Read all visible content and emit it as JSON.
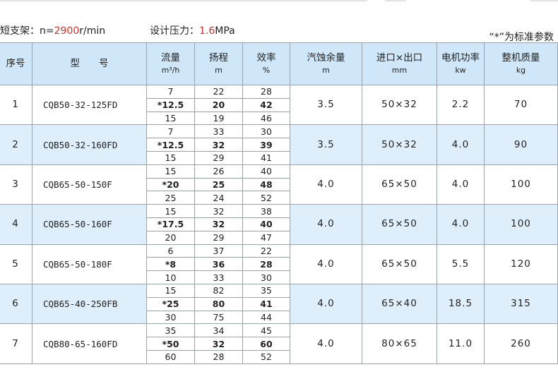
{
  "header_info": {
    "bracket_label": "短支架：n=",
    "speed_value": "2900",
    "speed_unit": "r/min",
    "pressure_label": "设计压力：",
    "pressure_value": "1.6",
    "pressure_unit": "MPa",
    "note": "“*”为标准参数"
  },
  "columns": [
    {
      "label": "序号",
      "unit": ""
    },
    {
      "label": "型　　号",
      "unit": ""
    },
    {
      "label": "流量",
      "unit": "m³/h"
    },
    {
      "label": "扬程",
      "unit": "m"
    },
    {
      "label": "效率",
      "unit": "%"
    },
    {
      "label": "汽蚀余量",
      "unit": "m"
    },
    {
      "label": "进口×出口",
      "unit": "mm"
    },
    {
      "label": "电机功率",
      "unit": "kw"
    },
    {
      "label": "整机质量",
      "unit": "kg"
    }
  ],
  "rows": [
    {
      "no": "1",
      "model": "CQB50-32-125FD",
      "points": [
        [
          "7",
          "22",
          "28"
        ],
        [
          "*12.5",
          "20",
          "42"
        ],
        [
          "15",
          "19",
          "46"
        ]
      ],
      "npsh": "3.5",
      "ports": "50×32",
      "power": "2.2",
      "mass": "70"
    },
    {
      "no": "2",
      "model": "CQB50-32-160FD",
      "points": [
        [
          "7",
          "33",
          "30"
        ],
        [
          "*12.5",
          "32",
          "39"
        ],
        [
          "15",
          "29",
          "41"
        ]
      ],
      "npsh": "3.5",
      "ports": "50×32",
      "power": "4.0",
      "mass": "90"
    },
    {
      "no": "3",
      "model": "CQB65-50-150F",
      "points": [
        [
          "15",
          "26",
          "40"
        ],
        [
          "*20",
          "25",
          "48"
        ],
        [
          "25",
          "24",
          "52"
        ]
      ],
      "npsh": "4.0",
      "ports": "65×50",
      "power": "4.0",
      "mass": "100"
    },
    {
      "no": "4",
      "model": "CQB65-50-160F",
      "points": [
        [
          "15",
          "32",
          "38"
        ],
        [
          "*17.5",
          "32",
          "40"
        ],
        [
          "20",
          "29",
          "47"
        ]
      ],
      "npsh": "4.0",
      "ports": "65×50",
      "power": "4.0",
      "mass": "100"
    },
    {
      "no": "5",
      "model": "CQB65-50-180F",
      "points": [
        [
          "6",
          "37",
          "22"
        ],
        [
          "*8",
          "36",
          "28"
        ],
        [
          "10",
          "33",
          "30"
        ]
      ],
      "npsh": "4.0",
      "ports": "65×50",
      "power": "5.5",
      "mass": "120"
    },
    {
      "no": "6",
      "model": "CQB65-40-250FB",
      "points": [
        [
          "15",
          "82",
          "35"
        ],
        [
          "*25",
          "80",
          "41"
        ],
        [
          "30",
          "75",
          "44"
        ]
      ],
      "npsh": "4.0",
      "ports": "65×40",
      "power": "18.5",
      "mass": "315"
    },
    {
      "no": "7",
      "model": "CQB80-65-160FD",
      "points": [
        [
          "35",
          "34",
          "45"
        ],
        [
          "*50",
          "32",
          "60"
        ],
        [
          "60",
          "28",
          "52"
        ]
      ],
      "npsh": "4.0",
      "ports": "80×65",
      "power": "11.0",
      "mass": "260"
    }
  ],
  "colors": {
    "header_bg": "#cfe7f8",
    "alt_row_bg": "#deeefa",
    "accent_red": "#e0302a"
  }
}
